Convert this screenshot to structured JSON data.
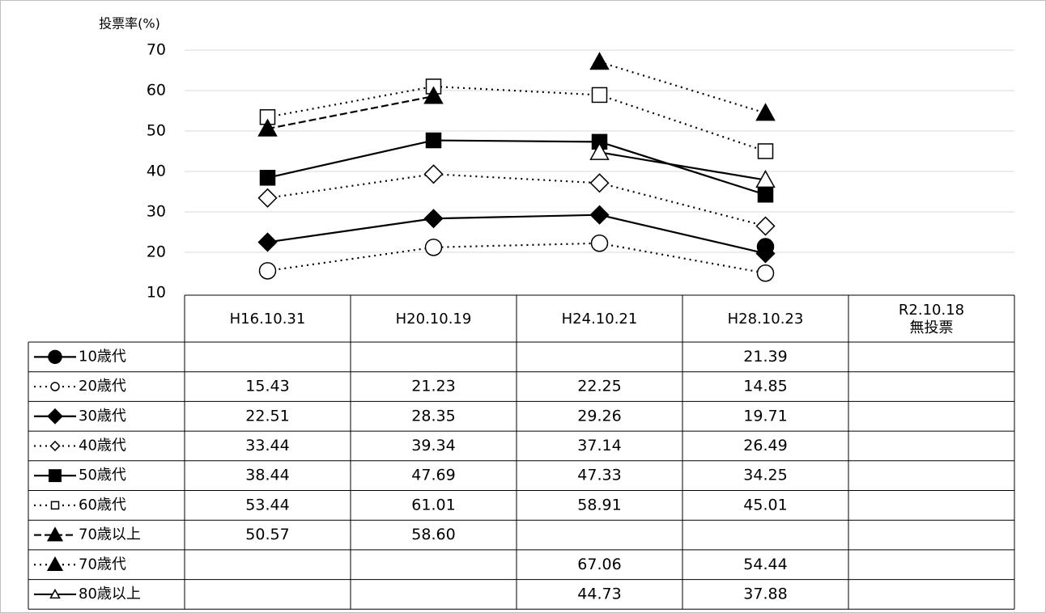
{
  "chart_data": {
    "type": "line",
    "y_label": "投票率(%)",
    "categories": [
      "H16.10.31",
      "H20.10.19",
      "H24.10.21",
      "H28.10.23",
      "R2.10.18\n無投票"
    ],
    "ylim": [
      10,
      70
    ],
    "yticks": [
      10,
      20,
      30,
      40,
      50,
      60,
      70
    ],
    "grid": true,
    "series": [
      {
        "name": "10歳代",
        "color": "#000000",
        "marker": "circle",
        "filled": true,
        "dash": "solid",
        "values": [
          null,
          null,
          null,
          21.39,
          null
        ],
        "value_labels": [
          null,
          null,
          null,
          "21.39",
          null
        ]
      },
      {
        "name": "20歳代",
        "color": "#000000",
        "marker": "circle",
        "filled": false,
        "dash": "dotted",
        "values": [
          15.43,
          21.23,
          22.25,
          14.85,
          null
        ],
        "value_labels": [
          "15.43",
          "21.23",
          "22.25",
          "14.85",
          null
        ]
      },
      {
        "name": "30歳代",
        "color": "#000000",
        "marker": "diamond",
        "filled": true,
        "dash": "solid",
        "values": [
          22.51,
          28.35,
          29.26,
          19.71,
          null
        ],
        "value_labels": [
          "22.51",
          "28.35",
          "29.26",
          "19.71",
          null
        ]
      },
      {
        "name": "40歳代",
        "color": "#000000",
        "marker": "diamond",
        "filled": false,
        "dash": "dotted",
        "values": [
          33.44,
          39.34,
          37.14,
          26.49,
          null
        ],
        "value_labels": [
          "33.44",
          "39.34",
          "37.14",
          "26.49",
          null
        ]
      },
      {
        "name": "50歳代",
        "color": "#000000",
        "marker": "square",
        "filled": true,
        "dash": "solid",
        "values": [
          38.44,
          47.69,
          47.33,
          34.25,
          null
        ],
        "value_labels": [
          "38.44",
          "47.69",
          "47.33",
          "34.25",
          null
        ]
      },
      {
        "name": "60歳代",
        "color": "#000000",
        "marker": "square",
        "filled": false,
        "dash": "dotted",
        "values": [
          53.44,
          61.01,
          58.91,
          45.01,
          null
        ],
        "value_labels": [
          "53.44",
          "61.01",
          "58.91",
          "45.01",
          null
        ]
      },
      {
        "name": "70歳以上",
        "color": "#000000",
        "marker": "triangle",
        "filled": true,
        "dash": "dashed",
        "values": [
          50.57,
          58.6,
          null,
          null,
          null
        ],
        "value_labels": [
          "50.57",
          "58.60",
          null,
          null,
          null
        ]
      },
      {
        "name": "70歳代",
        "color": "#000000",
        "marker": "triangle",
        "filled": true,
        "dash": "dotted",
        "values": [
          null,
          null,
          67.06,
          54.44,
          null
        ],
        "value_labels": [
          null,
          null,
          "67.06",
          "54.44",
          null
        ]
      },
      {
        "name": "80歳以上",
        "color": "#000000",
        "marker": "triangle",
        "filled": false,
        "dash": "solid",
        "values": [
          null,
          null,
          44.73,
          37.88,
          null
        ],
        "value_labels": [
          null,
          null,
          "44.73",
          "37.88",
          null
        ]
      }
    ]
  }
}
